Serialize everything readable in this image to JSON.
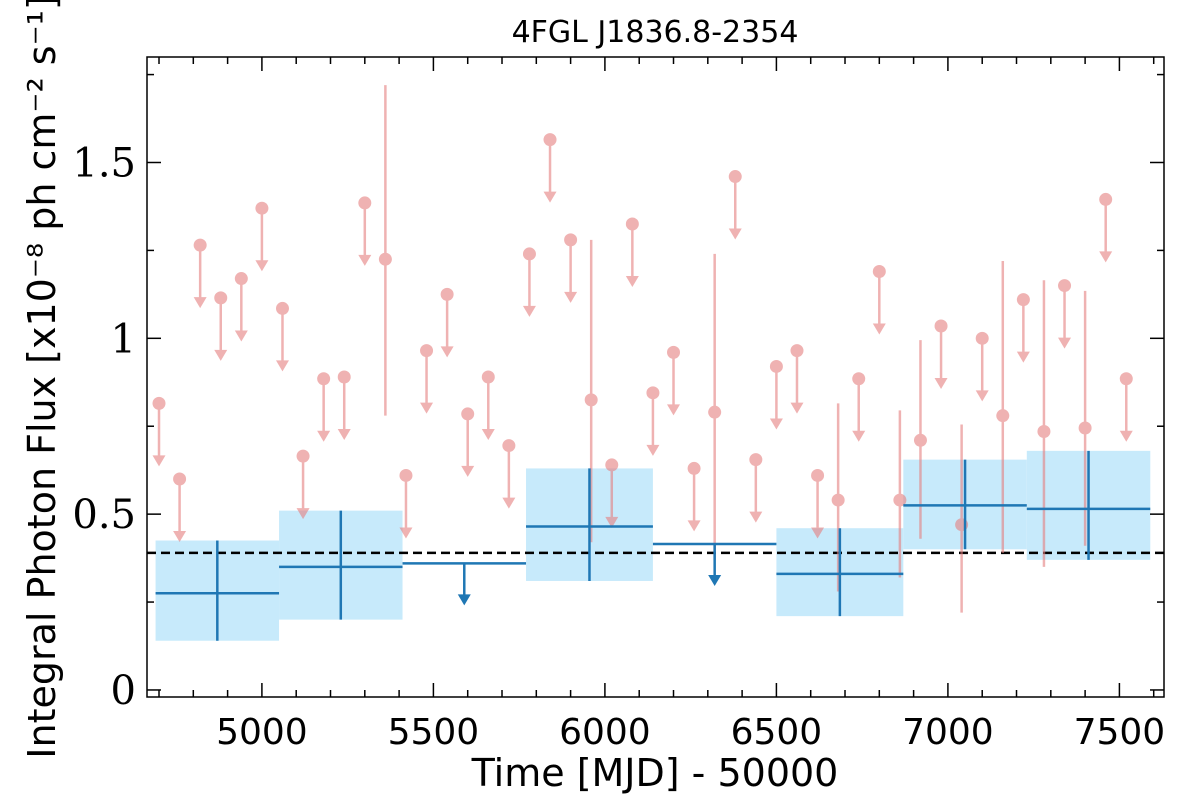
{
  "chart_data": {
    "type": "scatter",
    "title": "4FGL J1836.8-2354",
    "xlabel": "Time [MJD] - 50000",
    "ylabel": "Integral Photon Flux [x10⁻⁸ ph cm⁻² s⁻¹]",
    "xlim": [
      4665,
      7630
    ],
    "ylim": [
      -0.02,
      1.8
    ],
    "xticks": [
      {
        "value": 5000,
        "label": "5000"
      },
      {
        "value": 5500,
        "label": "5500"
      },
      {
        "value": 6000,
        "label": "6000"
      },
      {
        "value": 6500,
        "label": "6500"
      },
      {
        "value": 7000,
        "label": "7000"
      },
      {
        "value": 7500,
        "label": "7500"
      }
    ],
    "yticks": [
      {
        "value": 0,
        "label": "0"
      },
      {
        "value": 0.5,
        "label": "0.5"
      },
      {
        "value": 1,
        "label": "1"
      },
      {
        "value": 1.5,
        "label": "1.5"
      }
    ],
    "x_minor_step": 100,
    "y_minor_step": 0.25,
    "average_flux": 0.39,
    "colors": {
      "short_bins": "#e57f7f",
      "long_bins": "#1f77b4",
      "long_bins_band": "#c7eafb",
      "average_line": "#000000"
    },
    "long_bins": [
      {
        "x_start": 4690,
        "x_end": 5050,
        "flux": 0.275,
        "err_lo": 0.14,
        "err_hi": 0.425
      },
      {
        "x_start": 5050,
        "x_end": 5410,
        "flux": 0.35,
        "err_lo": 0.2,
        "err_hi": 0.51
      },
      {
        "x_start": 5410,
        "x_end": 5770,
        "flux": 0.36,
        "upper_limit": true
      },
      {
        "x_start": 5770,
        "x_end": 6140,
        "flux": 0.465,
        "err_lo": 0.31,
        "err_hi": 0.63
      },
      {
        "x_start": 6140,
        "x_end": 6500,
        "flux": 0.415,
        "upper_limit": true
      },
      {
        "x_start": 6500,
        "x_end": 6870,
        "flux": 0.33,
        "err_lo": 0.21,
        "err_hi": 0.46
      },
      {
        "x_start": 6870,
        "x_end": 7230,
        "flux": 0.525,
        "err_lo": 0.4,
        "err_hi": 0.655
      },
      {
        "x_start": 7230,
        "x_end": 7590,
        "flux": 0.515,
        "err_lo": 0.37,
        "err_hi": 0.68
      }
    ],
    "short_bins": [
      {
        "x": 4700,
        "flux": 0.815,
        "upper_limit": true
      },
      {
        "x": 4760,
        "flux": 0.6,
        "upper_limit": true
      },
      {
        "x": 4820,
        "flux": 1.265,
        "upper_limit": true
      },
      {
        "x": 4880,
        "flux": 1.115,
        "upper_limit": true
      },
      {
        "x": 4940,
        "flux": 1.17,
        "upper_limit": true
      },
      {
        "x": 5000,
        "flux": 1.37,
        "upper_limit": true
      },
      {
        "x": 5060,
        "flux": 1.085,
        "upper_limit": true
      },
      {
        "x": 5120,
        "flux": 0.665,
        "upper_limit": true
      },
      {
        "x": 5180,
        "flux": 0.885,
        "upper_limit": true
      },
      {
        "x": 5240,
        "flux": 0.89,
        "upper_limit": true
      },
      {
        "x": 5300,
        "flux": 1.385,
        "upper_limit": true
      },
      {
        "x": 5360,
        "flux": 1.225,
        "err_lo": 0.78,
        "err_hi": 1.72
      },
      {
        "x": 5420,
        "flux": 0.61,
        "upper_limit": true
      },
      {
        "x": 5480,
        "flux": 0.965,
        "upper_limit": true
      },
      {
        "x": 5540,
        "flux": 1.125,
        "upper_limit": true
      },
      {
        "x": 5600,
        "flux": 0.785,
        "upper_limit": true
      },
      {
        "x": 5660,
        "flux": 0.89,
        "upper_limit": true
      },
      {
        "x": 5720,
        "flux": 0.695,
        "upper_limit": true
      },
      {
        "x": 5780,
        "flux": 1.24,
        "upper_limit": true
      },
      {
        "x": 5840,
        "flux": 1.565,
        "upper_limit": true
      },
      {
        "x": 5900,
        "flux": 1.28,
        "upper_limit": true
      },
      {
        "x": 5960,
        "flux": 0.825,
        "err_lo": 0.42,
        "err_hi": 1.28
      },
      {
        "x": 6020,
        "flux": 0.64,
        "upper_limit": true
      },
      {
        "x": 6080,
        "flux": 1.325,
        "upper_limit": true
      },
      {
        "x": 6140,
        "flux": 0.845,
        "upper_limit": true
      },
      {
        "x": 6200,
        "flux": 0.96,
        "upper_limit": true
      },
      {
        "x": 6260,
        "flux": 0.63,
        "upper_limit": true
      },
      {
        "x": 6320,
        "flux": 0.79,
        "err_lo": 0.37,
        "err_hi": 1.24
      },
      {
        "x": 6380,
        "flux": 1.46,
        "upper_limit": true
      },
      {
        "x": 6440,
        "flux": 0.655,
        "upper_limit": true
      },
      {
        "x": 6500,
        "flux": 0.92,
        "upper_limit": true
      },
      {
        "x": 6560,
        "flux": 0.965,
        "upper_limit": true
      },
      {
        "x": 6620,
        "flux": 0.61,
        "upper_limit": true
      },
      {
        "x": 6680,
        "flux": 0.54,
        "err_lo": 0.28,
        "err_hi": 0.815
      },
      {
        "x": 6740,
        "flux": 0.885,
        "upper_limit": true
      },
      {
        "x": 6800,
        "flux": 1.19,
        "upper_limit": true
      },
      {
        "x": 6860,
        "flux": 0.54,
        "err_lo": 0.32,
        "err_hi": 0.795
      },
      {
        "x": 6920,
        "flux": 0.71,
        "err_lo": 0.43,
        "err_hi": 0.995
      },
      {
        "x": 6980,
        "flux": 1.035,
        "upper_limit": true
      },
      {
        "x": 7040,
        "flux": 0.47,
        "err_lo": 0.22,
        "err_hi": 0.755
      },
      {
        "x": 7100,
        "flux": 1.0,
        "upper_limit": true
      },
      {
        "x": 7160,
        "flux": 0.78,
        "err_lo": 0.39,
        "err_hi": 1.22
      },
      {
        "x": 7220,
        "flux": 1.11,
        "upper_limit": true
      },
      {
        "x": 7280,
        "flux": 0.735,
        "err_lo": 0.35,
        "err_hi": 1.165
      },
      {
        "x": 7340,
        "flux": 1.15,
        "upper_limit": true
      },
      {
        "x": 7400,
        "flux": 0.745,
        "err_lo": 0.41,
        "err_hi": 1.135
      },
      {
        "x": 7460,
        "flux": 1.395,
        "upper_limit": true
      },
      {
        "x": 7520,
        "flux": 0.885,
        "upper_limit": true
      }
    ]
  }
}
